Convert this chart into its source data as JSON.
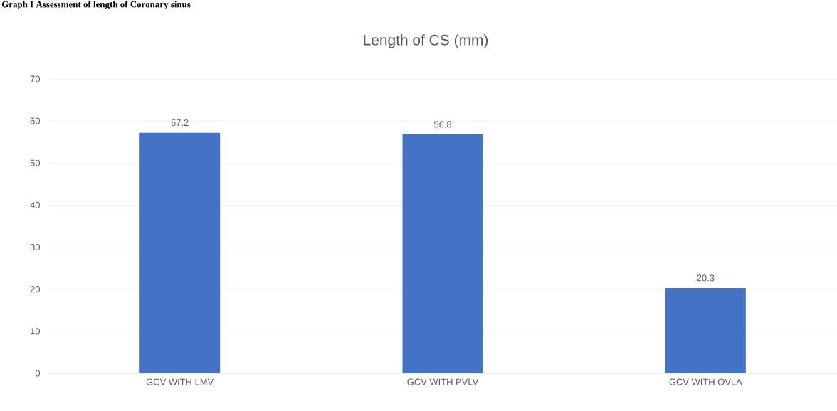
{
  "chart_data": {
    "type": "bar",
    "title": "Length of CS (mm)",
    "annotations": [
      "Graph I Assessment of length of Coronary sinus"
    ],
    "categories": [
      "GCV WITH LMV",
      "GCV WITH PVLV",
      "GCV WITH OVLA"
    ],
    "values": [
      57.2,
      56.8,
      20.3
    ],
    "value_labels": [
      "57.2",
      "56.8",
      "20.3"
    ],
    "color": "#4472c4",
    "ylim": [
      0,
      70
    ],
    "yticks": [
      0,
      10,
      20,
      30,
      40,
      50,
      60,
      70
    ],
    "grid": "y"
  }
}
